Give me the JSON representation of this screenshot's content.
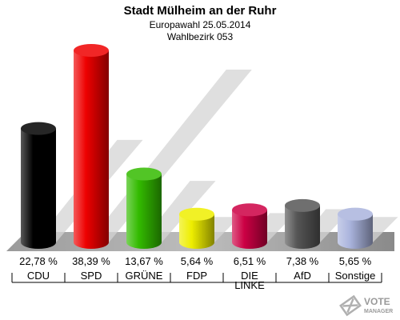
{
  "header": {
    "title": "Stadt Mülheim an der Ruhr",
    "subtitle": "Europawahl 25.05.2014",
    "district": "Wahlbezirk 053"
  },
  "logo": {
    "line1": "VOTE",
    "line2": "MANAGER"
  },
  "colors": {
    "CDU": "#000000",
    "SPD": "#ee0000",
    "GRÜNE": "#33bb00",
    "FDP": "#eeee00",
    "DIE LINKE": "#cc0044",
    "AfD": "#555555",
    "Sonstige": "#aab4dd"
  },
  "chart_data": {
    "type": "bar",
    "categories": [
      "CDU",
      "SPD",
      "GRÜNE",
      "FDP",
      "DIE LINKE",
      "AfD",
      "Sonstige"
    ],
    "values": [
      22.78,
      38.39,
      13.67,
      5.64,
      6.51,
      7.38,
      5.65
    ],
    "value_labels": [
      "22,78 %",
      "38,39 %",
      "13,67 %",
      "5,64 %",
      "6,51 %",
      "7,38 %",
      "5,65 %"
    ],
    "category_labels": [
      [
        "CDU"
      ],
      [
        "SPD"
      ],
      [
        "GRÜNE"
      ],
      [
        "FDP"
      ],
      [
        "DIE",
        "LINKE"
      ],
      [
        "AfD"
      ],
      [
        "Sonstige"
      ]
    ],
    "title": "Stadt Mülheim an der Ruhr",
    "xlabel": "",
    "ylabel": "",
    "grid": false,
    "legend": "none"
  }
}
